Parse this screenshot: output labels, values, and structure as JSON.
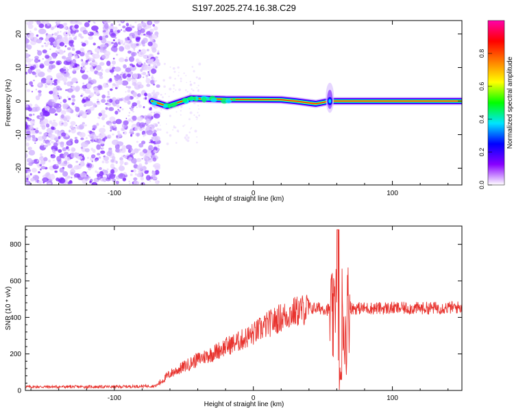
{
  "title": "S197.2025.274.16.38.C29",
  "chart_data": [
    {
      "type": "heatmap",
      "xlabel": "Height of straight line (km)",
      "ylabel": "Frequency (Hz)",
      "xlim": [
        -164,
        150
      ],
      "ylim": [
        -25,
        24
      ],
      "xticks": [
        -100,
        0,
        100
      ],
      "yticks": [
        -20,
        -10,
        0,
        10,
        20
      ],
      "noise_region_x": [
        -164,
        -72
      ],
      "line_segments": [
        {
          "x": [
            -73,
            -62
          ],
          "y": [
            0,
            -1.5
          ]
        },
        {
          "x": [
            -62,
            -45
          ],
          "y": [
            -1.5,
            0.8
          ]
        },
        {
          "x": [
            -45,
            -20
          ],
          "y": [
            0.8,
            0.5
          ]
        },
        {
          "x": [
            -20,
            20
          ],
          "y": [
            0.5,
            0.4
          ]
        },
        {
          "x": [
            20,
            30
          ],
          "y": [
            0.4,
            0.0
          ]
        },
        {
          "x": [
            30,
            45
          ],
          "y": [
            0.0,
            -0.8
          ]
        },
        {
          "x": [
            45,
            55
          ],
          "y": [
            -0.8,
            0.0
          ]
        },
        {
          "x": [
            55,
            150
          ],
          "y": [
            0.0,
            0.0
          ]
        }
      ],
      "disturbance_x": 55,
      "colorbar": {
        "label": "Normalized spectral amplitude",
        "range": [
          0,
          1
        ],
        "ticks": [
          "0.0",
          "0.2",
          "0.4",
          "0.6",
          "0.8"
        ],
        "colors": [
          "#ffffff",
          "#8800ff",
          "#0000ff",
          "#00e5ff",
          "#00ff00",
          "#ffff00",
          "#ff7f00",
          "#ff0000",
          "#ff00aa"
        ]
      }
    },
    {
      "type": "line",
      "xlabel": "Height of straight line (km)",
      "ylabel": "SNR (10 * v/v)",
      "xlim": [
        -164,
        150
      ],
      "ylim": [
        0,
        900
      ],
      "xticks": [
        -100,
        0,
        100
      ],
      "yticks": [
        0,
        200,
        400,
        600,
        800
      ],
      "color": "#e8332e",
      "series": [
        {
          "name": "SNR",
          "x": [
            -164,
            -100,
            -70,
            -60,
            -50,
            -40,
            -30,
            -20,
            -10,
            0,
            10,
            20,
            30,
            40,
            50,
            55,
            58,
            60,
            62,
            64,
            66,
            68,
            70,
            80,
            100,
            120,
            150
          ],
          "y": [
            20,
            20,
            25,
            90,
            130,
            170,
            200,
            240,
            270,
            310,
            360,
            400,
            430,
            450,
            450,
            440,
            350,
            700,
            120,
            500,
            250,
            460,
            450,
            450,
            450,
            450,
            455
          ]
        }
      ]
    }
  ]
}
